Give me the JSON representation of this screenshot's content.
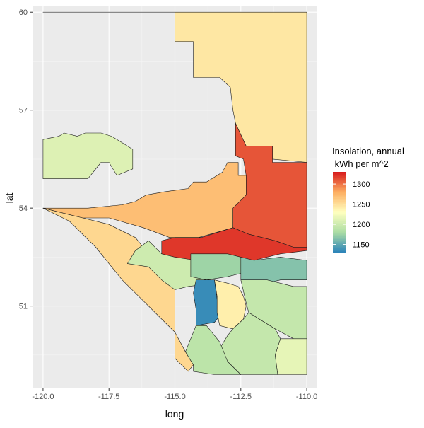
{
  "chart_data": {
    "type": "choropleth",
    "xlabel": "long",
    "ylabel": "lat",
    "xlim": [
      -120.4,
      -109.6
    ],
    "ylim": [
      48.5,
      60.2
    ],
    "x_ticks": [
      -120.0,
      -117.5,
      -115.0,
      -112.5,
      -110.0
    ],
    "x_tick_labels": [
      "-120.0",
      "-117.5",
      "-115.0",
      "-112.5",
      "-110.0"
    ],
    "y_ticks": [
      51,
      54,
      57,
      60
    ],
    "y_tick_labels": [
      "51",
      "54",
      "57",
      "60"
    ],
    "grid": true,
    "panel_background": "#ebebeb",
    "legend": {
      "title_lines": [
        "Insolation, annual",
        " kWh per m^2"
      ],
      "position": "right",
      "range": [
        1130,
        1330
      ],
      "breaks": [
        1150,
        1200,
        1250,
        1300
      ],
      "break_labels": [
        "1150",
        "1200",
        "1250",
        "1300"
      ],
      "palette": [
        "#2b83ba",
        "#abdda4",
        "#ffffbf",
        "#fdae61",
        "#d7191c"
      ]
    },
    "regions": [
      {
        "name": "north",
        "value": 1245,
        "coords": [
          [
            -120,
            60
          ],
          [
            -115,
            60
          ],
          [
            -115,
            59.1
          ],
          [
            -114.3,
            59.1
          ],
          [
            -114.3,
            58
          ],
          [
            -113.3,
            58
          ],
          [
            -112.9,
            57.7
          ],
          [
            -112.8,
            57
          ],
          [
            -112.7,
            56.6
          ],
          [
            -112.3,
            55.9
          ],
          [
            -111.7,
            55.9
          ],
          [
            -111.3,
            55.9
          ],
          [
            -111.3,
            55.5
          ],
          [
            -110,
            55.4
          ],
          [
            -110,
            60
          ],
          [
            -120,
            60
          ]
        ]
      },
      {
        "name": "north-west-green",
        "value": 1210,
        "coords": [
          [
            -120,
            56.1
          ],
          [
            -119.4,
            56.2
          ],
          [
            -119.2,
            56.3
          ],
          [
            -118.7,
            56.2
          ],
          [
            -118.4,
            56.3
          ],
          [
            -117.8,
            56.3
          ],
          [
            -117.4,
            56.2
          ],
          [
            -117.0,
            56.0
          ],
          [
            -116.6,
            55.8
          ],
          [
            -116.6,
            55.2
          ],
          [
            -117.2,
            55.0
          ],
          [
            -117.5,
            55.4
          ],
          [
            -117.8,
            55.4
          ],
          [
            -118.3,
            54.9
          ],
          [
            -120,
            54.9
          ],
          [
            -120,
            56.1
          ]
        ]
      },
      {
        "name": "north-east-red",
        "value": 1310,
        "coords": [
          [
            -112.7,
            56.6
          ],
          [
            -112.3,
            55.9
          ],
          [
            -111.3,
            55.9
          ],
          [
            -111.3,
            55.4
          ],
          [
            -110,
            55.4
          ],
          [
            -110,
            52.8
          ],
          [
            -110.5,
            52.8
          ],
          [
            -111.2,
            53.0
          ],
          [
            -112.2,
            53.2
          ],
          [
            -112.8,
            53.4
          ],
          [
            -112.8,
            54.0
          ],
          [
            -112.3,
            54.4
          ],
          [
            -112.3,
            55.0
          ],
          [
            -112.4,
            55.5
          ],
          [
            -112.7,
            55.6
          ],
          [
            -112.7,
            56.6
          ]
        ]
      },
      {
        "name": "central-peach",
        "value": 1270,
        "coords": [
          [
            -120,
            54.0
          ],
          [
            -119,
            53.8
          ],
          [
            -118.5,
            53.7
          ],
          [
            -117.5,
            53.7
          ],
          [
            -116.2,
            53.4
          ],
          [
            -115.2,
            53.1
          ],
          [
            -114.6,
            53.1
          ],
          [
            -114.1,
            53.1
          ],
          [
            -112.8,
            53.4
          ],
          [
            -112.8,
            54.0
          ],
          [
            -112.3,
            54.4
          ],
          [
            -112.3,
            55.0
          ],
          [
            -112.6,
            55.0
          ],
          [
            -112.6,
            55.4
          ],
          [
            -113.0,
            55.4
          ],
          [
            -113.2,
            55.1
          ],
          [
            -113.8,
            54.8
          ],
          [
            -114.3,
            54.8
          ],
          [
            -114.5,
            54.6
          ],
          [
            -115.4,
            54.5
          ],
          [
            -116.1,
            54.4
          ],
          [
            -116.5,
            54.2
          ],
          [
            -117.0,
            54.1
          ],
          [
            -118.3,
            54.0
          ],
          [
            -120,
            54.0
          ]
        ]
      },
      {
        "name": "central-red",
        "value": 1320,
        "coords": [
          [
            -115.5,
            53.0
          ],
          [
            -115.0,
            53.1
          ],
          [
            -114.0,
            53.1
          ],
          [
            -113.2,
            53.3
          ],
          [
            -112.8,
            53.4
          ],
          [
            -112.2,
            53.2
          ],
          [
            -111.7,
            53.1
          ],
          [
            -111.2,
            53.0
          ],
          [
            -110.5,
            52.8
          ],
          [
            -110,
            52.8
          ],
          [
            -110,
            52.7
          ],
          [
            -111.0,
            52.6
          ],
          [
            -112.0,
            52.4
          ],
          [
            -113.0,
            52.4
          ],
          [
            -114.0,
            52.3
          ],
          [
            -115.0,
            52.4
          ],
          [
            -115.5,
            52.6
          ],
          [
            -115.5,
            53.0
          ]
        ]
      },
      {
        "name": "west-foothills-tan",
        "value": 1255,
        "coords": [
          [
            -120,
            54.0
          ],
          [
            -119.0,
            53.6
          ],
          [
            -118.5,
            53.2
          ],
          [
            -118.0,
            52.8
          ],
          [
            -117.5,
            52.3
          ],
          [
            -117.0,
            51.8
          ],
          [
            -116.5,
            51.4
          ],
          [
            -116.0,
            51.0
          ],
          [
            -115.5,
            50.6
          ],
          [
            -115.0,
            50.2
          ],
          [
            -114.6,
            49.6
          ],
          [
            -114.3,
            49.2
          ],
          [
            -114.5,
            49.0
          ],
          [
            -115.0,
            49.4
          ],
          [
            -115.0,
            50.0
          ],
          [
            -115.0,
            50.6
          ],
          [
            -115.0,
            51.5
          ],
          [
            -115.5,
            52.0
          ],
          [
            -116.0,
            52.6
          ],
          [
            -116.5,
            53.1
          ],
          [
            -117.5,
            53.5
          ],
          [
            -118.5,
            53.7
          ],
          [
            -119.0,
            53.8
          ],
          [
            -120,
            54.0
          ]
        ]
      },
      {
        "name": "west-central-green",
        "value": 1200,
        "coords": [
          [
            -115.5,
            52.6
          ],
          [
            -115.0,
            52.5
          ],
          [
            -114.2,
            52.4
          ],
          [
            -114.0,
            52.1
          ],
          [
            -113.5,
            51.7
          ],
          [
            -114.5,
            51.6
          ],
          [
            -115.0,
            51.5
          ],
          [
            -115.5,
            51.8
          ],
          [
            -116.0,
            52.2
          ],
          [
            -116.8,
            52.3
          ],
          [
            -116.5,
            52.7
          ],
          [
            -116.0,
            53.0
          ],
          [
            -115.5,
            52.6
          ]
        ]
      },
      {
        "name": "central-teal",
        "value": 1175,
        "coords": [
          [
            -114.4,
            52.6
          ],
          [
            -113.8,
            52.6
          ],
          [
            -113.0,
            52.6
          ],
          [
            -112.5,
            52.5
          ],
          [
            -112.5,
            52.0
          ],
          [
            -113.0,
            51.9
          ],
          [
            -113.8,
            51.8
          ],
          [
            -114.4,
            51.9
          ],
          [
            -114.4,
            52.6
          ]
        ]
      },
      {
        "name": "east-central-teal",
        "value": 1165,
        "coords": [
          [
            -112.5,
            52.5
          ],
          [
            -112.0,
            52.4
          ],
          [
            -111.0,
            52.5
          ],
          [
            -110,
            52.4
          ],
          [
            -110,
            51.8
          ],
          [
            -111.0,
            51.8
          ],
          [
            -112.0,
            51.6
          ],
          [
            -112.5,
            51.8
          ],
          [
            -112.5,
            52.5
          ]
        ]
      },
      {
        "name": "southwest-blue",
        "value": 1135,
        "coords": [
          [
            -114.0,
            51.8
          ],
          [
            -113.5,
            51.8
          ],
          [
            -113.4,
            51.2
          ],
          [
            -113.3,
            50.7
          ],
          [
            -113.5,
            50.5
          ],
          [
            -114.2,
            50.4
          ],
          [
            -114.2,
            50.9
          ],
          [
            -114.3,
            51.4
          ],
          [
            -114.2,
            51.8
          ],
          [
            -114.0,
            51.8
          ]
        ]
      },
      {
        "name": "calgary-cream",
        "value": 1240,
        "coords": [
          [
            -113.5,
            51.8
          ],
          [
            -113.0,
            51.7
          ],
          [
            -112.6,
            51.6
          ],
          [
            -112.4,
            51.3
          ],
          [
            -112.3,
            51.0
          ],
          [
            -112.4,
            50.6
          ],
          [
            -112.8,
            50.3
          ],
          [
            -113.3,
            50.4
          ],
          [
            -113.4,
            50.8
          ],
          [
            -113.4,
            51.3
          ],
          [
            -113.5,
            51.8
          ]
        ]
      },
      {
        "name": "east-green",
        "value": 1195,
        "coords": [
          [
            -112.5,
            51.8
          ],
          [
            -111.5,
            51.8
          ],
          [
            -110.5,
            51.6
          ],
          [
            -110,
            51.6
          ],
          [
            -110,
            50.0
          ],
          [
            -110.5,
            50.0
          ],
          [
            -111.2,
            50.3
          ],
          [
            -111.8,
            50.6
          ],
          [
            -112.2,
            50.8
          ],
          [
            -112.3,
            51.1
          ],
          [
            -112.5,
            51.8
          ]
        ]
      },
      {
        "name": "southeast-lightgreen",
        "value": 1215,
        "coords": [
          [
            -110,
            50.0
          ],
          [
            -110.5,
            50.0
          ],
          [
            -111.0,
            50.0
          ],
          [
            -111.2,
            49.5
          ],
          [
            -111.1,
            48.9
          ],
          [
            -110.5,
            48.9
          ],
          [
            -110,
            48.9
          ],
          [
            -110,
            50.0
          ]
        ]
      },
      {
        "name": "south-central-green",
        "value": 1195,
        "coords": [
          [
            -112.8,
            50.3
          ],
          [
            -112.4,
            50.6
          ],
          [
            -112.2,
            50.8
          ],
          [
            -111.8,
            50.6
          ],
          [
            -111.2,
            50.3
          ],
          [
            -111.0,
            50.0
          ],
          [
            -111.2,
            49.5
          ],
          [
            -111.1,
            48.9
          ],
          [
            -112.0,
            48.9
          ],
          [
            -112.5,
            48.9
          ],
          [
            -113.0,
            49.3
          ],
          [
            -113.3,
            49.7
          ],
          [
            -113.0,
            50.1
          ],
          [
            -112.8,
            50.3
          ]
        ]
      },
      {
        "name": "south-west-green",
        "value": 1190,
        "coords": [
          [
            -114.2,
            50.4
          ],
          [
            -113.8,
            50.4
          ],
          [
            -113.3,
            49.9
          ],
          [
            -113.0,
            49.3
          ],
          [
            -112.5,
            48.9
          ],
          [
            -113.5,
            48.9
          ],
          [
            -114.3,
            49.0
          ],
          [
            -114.3,
            49.2
          ],
          [
            -114.6,
            49.6
          ],
          [
            -114.4,
            50.0
          ],
          [
            -114.2,
            50.4
          ]
        ]
      }
    ]
  }
}
